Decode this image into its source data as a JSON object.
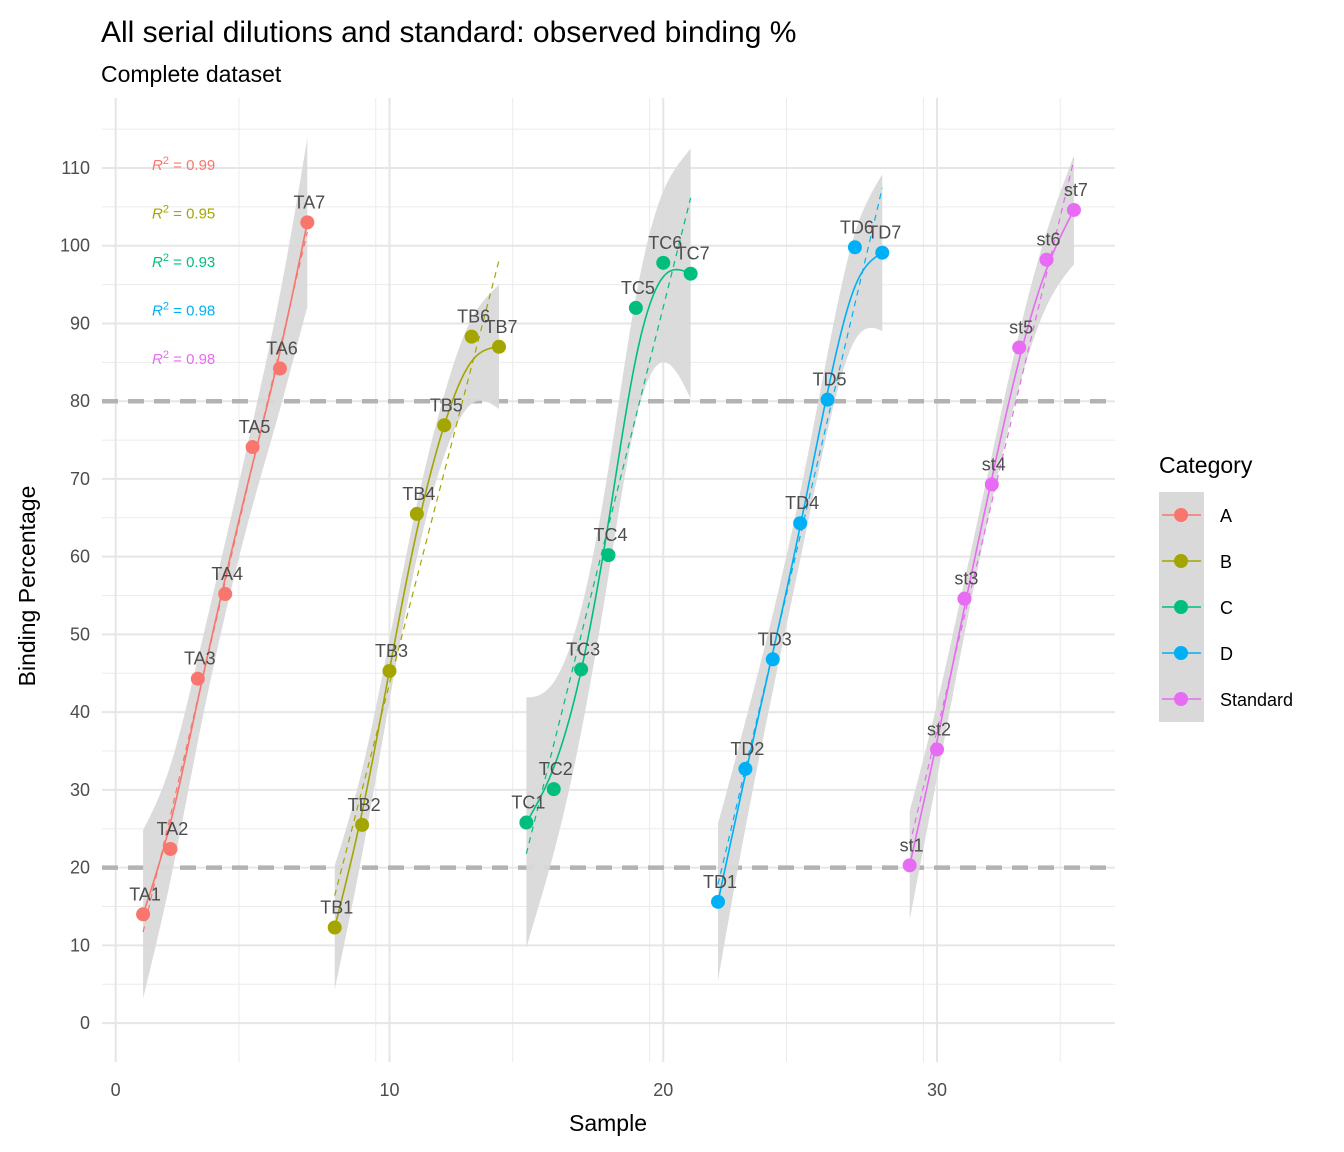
{
  "chart_data": {
    "type": "scatter",
    "title": "All serial dilutions and standard: observed binding %",
    "subtitle": "Complete dataset",
    "xlabel": "Sample",
    "ylabel": "Binding Percentage",
    "xlim": [
      -0.5,
      36.5
    ],
    "ylim": [
      -5,
      119
    ],
    "x_ticks": [
      0,
      10,
      20,
      30
    ],
    "y_ticks": [
      0,
      10,
      20,
      30,
      40,
      50,
      60,
      70,
      80,
      90,
      100,
      110
    ],
    "grid": true,
    "reference_lines": [
      {
        "y": 80,
        "style": "dashed",
        "color": "#b3b3b3"
      },
      {
        "y": 20,
        "style": "dashed",
        "color": "#b3b3b3"
      }
    ],
    "legend": {
      "title": "Category",
      "position": "right"
    },
    "series": [
      {
        "name": "A",
        "color": "#F8766D",
        "r2_label": "= 0.99",
        "points": [
          {
            "label": "TA1",
            "x": 1,
            "y": 14.0
          },
          {
            "label": "TA2",
            "x": 2,
            "y": 22.4
          },
          {
            "label": "TA3",
            "x": 3,
            "y": 44.3
          },
          {
            "label": "TA4",
            "x": 4,
            "y": 55.2
          },
          {
            "label": "TA5",
            "x": 5,
            "y": 74.1
          },
          {
            "label": "TA6",
            "x": 6,
            "y": 84.2
          },
          {
            "label": "TA7",
            "x": 7,
            "y": 103.0
          }
        ]
      },
      {
        "name": "B",
        "color": "#A3A500",
        "r2_label": "= 0.95",
        "points": [
          {
            "label": "TB1",
            "x": 8,
            "y": 12.3
          },
          {
            "label": "TB2",
            "x": 9,
            "y": 25.5
          },
          {
            "label": "TB3",
            "x": 10,
            "y": 45.3
          },
          {
            "label": "TB4",
            "x": 11,
            "y": 65.5
          },
          {
            "label": "TB5",
            "x": 12,
            "y": 76.9
          },
          {
            "label": "TB6",
            "x": 13,
            "y": 88.3
          },
          {
            "label": "TB7",
            "x": 14,
            "y": 87.0
          }
        ]
      },
      {
        "name": "C",
        "color": "#00BF7D",
        "r2_label": "= 0.93",
        "points": [
          {
            "label": "TC1",
            "x": 15,
            "y": 25.8
          },
          {
            "label": "TC2",
            "x": 16,
            "y": 30.1
          },
          {
            "label": "TC3",
            "x": 17,
            "y": 45.5
          },
          {
            "label": "TC4",
            "x": 18,
            "y": 60.2
          },
          {
            "label": "TC5",
            "x": 19,
            "y": 92.0
          },
          {
            "label": "TC6",
            "x": 20,
            "y": 97.8
          },
          {
            "label": "TC7",
            "x": 21,
            "y": 96.4
          }
        ]
      },
      {
        "name": "D",
        "color": "#00B0F6",
        "r2_label": "= 0.98",
        "points": [
          {
            "label": "TD1",
            "x": 22,
            "y": 15.6
          },
          {
            "label": "TD2",
            "x": 23,
            "y": 32.7
          },
          {
            "label": "TD3",
            "x": 24,
            "y": 46.8
          },
          {
            "label": "TD4",
            "x": 25,
            "y": 64.3
          },
          {
            "label": "TD5",
            "x": 26,
            "y": 80.2
          },
          {
            "label": "TD6",
            "x": 27,
            "y": 99.8
          },
          {
            "label": "TD7",
            "x": 28,
            "y": 99.1
          }
        ]
      },
      {
        "name": "Standard",
        "color": "#E76BF3",
        "r2_label": "= 0.98",
        "points": [
          {
            "label": "st1",
            "x": 29,
            "y": 20.3
          },
          {
            "label": "st2",
            "x": 30,
            "y": 35.2
          },
          {
            "label": "st3",
            "x": 31,
            "y": 54.6
          },
          {
            "label": "st4",
            "x": 32,
            "y": 69.3
          },
          {
            "label": "st5",
            "x": 33,
            "y": 86.9
          },
          {
            "label": "st6",
            "x": 34,
            "y": 98.2
          },
          {
            "label": "st7",
            "x": 35,
            "y": 104.6
          }
        ]
      }
    ]
  }
}
